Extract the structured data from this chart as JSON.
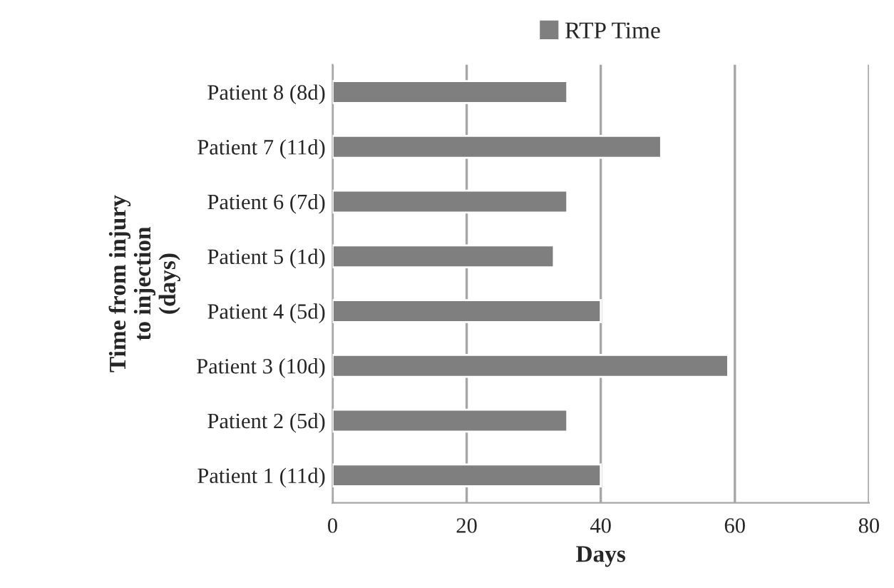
{
  "chart_data": {
    "type": "bar",
    "orientation": "horizontal",
    "xlabel": "Days",
    "ylabel": "Time from injury\nto injection\n(days)",
    "categories": [
      "Patient 8 (8d)",
      "Patient 7 (11d)",
      "Patient 6 (7d)",
      "Patient 5 (1d)",
      "Patient 4 (5d)",
      "Patient 3 (10d)",
      "Patient 2 (5d)",
      "Patient 1 (11d)"
    ],
    "series": [
      {
        "name": "RTP Time",
        "color": "#7f7f7f",
        "values": [
          35,
          49,
          35,
          33,
          40,
          59,
          35,
          40
        ]
      }
    ],
    "xlim": [
      0,
      80
    ],
    "xticks": [
      0,
      20,
      40,
      60,
      80
    ],
    "grid": "x",
    "legend": "top"
  }
}
